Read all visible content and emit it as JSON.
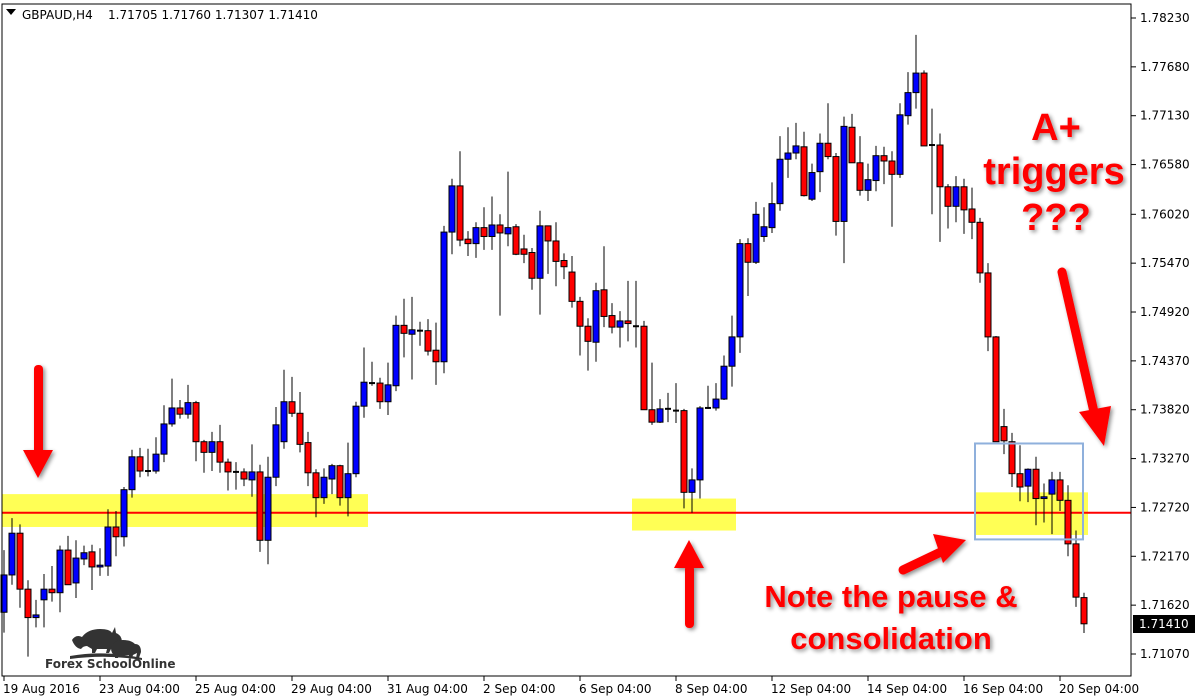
{
  "header": {
    "symbol": "GBPAUD,H4",
    "ohlc": "1.71705 1.71760 1.71307 1.71410",
    "dropdown_icon": "triangle-down-icon"
  },
  "colors": {
    "bull": "#0000ff",
    "bear": "#ff0000",
    "wick": "#000000",
    "zone": "#ffff55",
    "support_line": "#ff0000",
    "box": "#8fb0dc",
    "annotation": "#ff0000"
  },
  "annotations": {
    "a_plus": "A+",
    "triggers": "triggers",
    "question": "???",
    "note_line1": "Note the pause &",
    "note_line2": "consolidation"
  },
  "logo": {
    "text": "Forex SchoolOnline"
  },
  "chart_data": {
    "type": "candlestick",
    "title": "GBPAUD,H4",
    "ylim": [
      1.7082,
      1.7838
    ],
    "y_ticks": [
      "1.78230",
      "1.77680",
      "1.77130",
      "1.76580",
      "1.76020",
      "1.75470",
      "1.74920",
      "1.74370",
      "1.73820",
      "1.73270",
      "1.72720",
      "1.72170",
      "1.71620",
      "1.71070"
    ],
    "current_price": "1.71410",
    "support_level": 1.7266,
    "zones": [
      {
        "from_candle": 0,
        "to_candle": 45,
        "low": 1.725,
        "high": 1.7287
      },
      {
        "from_candle": 79,
        "to_candle": 91,
        "low": 1.7246,
        "high": 1.7282
      },
      {
        "from_candle": 122,
        "to_candle": 135,
        "low": 1.7241,
        "high": 1.7289
      }
    ],
    "consolidation_box": {
      "from_candle": 122,
      "to_candle": 134,
      "low": 1.7236,
      "high": 1.7344
    },
    "x_ticks": [
      {
        "label": "19 Aug 2016",
        "candle": 0
      },
      {
        "label": "23 Aug 04:00",
        "candle": 12
      },
      {
        "label": "25 Aug 04:00",
        "candle": 24
      },
      {
        "label": "29 Aug 04:00",
        "candle": 36
      },
      {
        "label": "31 Aug 04:00",
        "candle": 48
      },
      {
        "label": "2 Sep 04:00",
        "candle": 60
      },
      {
        "label": "6 Sep 04:00",
        "candle": 72
      },
      {
        "label": "8 Sep 04:00",
        "candle": 84
      },
      {
        "label": "12 Sep 04:00",
        "candle": 96
      },
      {
        "label": "14 Sep 04:00",
        "candle": 108
      },
      {
        "label": "16 Sep 04:00",
        "candle": 120
      },
      {
        "label": "20 Sep 04:00",
        "candle": 132
      }
    ],
    "candles_ohlc": [
      [
        1.7154,
        1.7224,
        1.7131,
        1.7196
      ],
      [
        1.7196,
        1.726,
        1.7185,
        1.7243
      ],
      [
        1.7243,
        1.7253,
        1.7159,
        1.718
      ],
      [
        1.718,
        1.719,
        1.7104,
        1.7148
      ],
      [
        1.7148,
        1.7168,
        1.7137,
        1.7151
      ],
      [
        1.7168,
        1.7197,
        1.7137,
        1.718
      ],
      [
        1.718,
        1.7206,
        1.7166,
        1.7176
      ],
      [
        1.7176,
        1.7229,
        1.7154,
        1.7224
      ],
      [
        1.7224,
        1.724,
        1.7185,
        1.7185
      ],
      [
        1.7187,
        1.7235,
        1.717,
        1.7215
      ],
      [
        1.7214,
        1.7229,
        1.7207,
        1.7221
      ],
      [
        1.7222,
        1.723,
        1.7179,
        1.7205
      ],
      [
        1.7205,
        1.7226,
        1.7195,
        1.7207
      ],
      [
        1.7206,
        1.727,
        1.7195,
        1.725
      ],
      [
        1.725,
        1.7268,
        1.7217,
        1.7239
      ],
      [
        1.7239,
        1.7295,
        1.7228,
        1.7292
      ],
      [
        1.7292,
        1.7337,
        1.7283,
        1.7329
      ],
      [
        1.7329,
        1.7339,
        1.7306,
        1.7313
      ],
      [
        1.7313,
        1.7338,
        1.7307,
        1.7313
      ],
      [
        1.7313,
        1.7351,
        1.731,
        1.7332
      ],
      [
        1.7332,
        1.7387,
        1.7323,
        1.7366
      ],
      [
        1.7366,
        1.7417,
        1.7363,
        1.7384
      ],
      [
        1.7384,
        1.7393,
        1.7372,
        1.7377
      ],
      [
        1.7377,
        1.741,
        1.7372,
        1.739
      ],
      [
        1.739,
        1.7392,
        1.7324,
        1.7346
      ],
      [
        1.7346,
        1.7348,
        1.7311,
        1.7334
      ],
      [
        1.7334,
        1.7357,
        1.7313,
        1.7346
      ],
      [
        1.7346,
        1.7365,
        1.7311,
        1.7323
      ],
      [
        1.7323,
        1.7327,
        1.7291,
        1.7312
      ],
      [
        1.7312,
        1.7323,
        1.7292,
        1.7312
      ],
      [
        1.7312,
        1.7316,
        1.7296,
        1.7304
      ],
      [
        1.7303,
        1.7343,
        1.7284,
        1.7312
      ],
      [
        1.7312,
        1.732,
        1.7222,
        1.7235
      ],
      [
        1.7235,
        1.7329,
        1.7208,
        1.7306
      ],
      [
        1.7306,
        1.7385,
        1.7296,
        1.7365
      ],
      [
        1.7346,
        1.7427,
        1.7338,
        1.7391
      ],
      [
        1.7391,
        1.7419,
        1.7374,
        1.7378
      ],
      [
        1.7378,
        1.7402,
        1.7334,
        1.7343
      ],
      [
        1.7345,
        1.7357,
        1.7296,
        1.7311
      ],
      [
        1.7311,
        1.7315,
        1.7261,
        1.7283
      ],
      [
        1.7283,
        1.7316,
        1.7276,
        1.7306
      ],
      [
        1.7304,
        1.7321,
        1.7287,
        1.7319
      ],
      [
        1.7319,
        1.732,
        1.7274,
        1.7283
      ],
      [
        1.7283,
        1.7345,
        1.7262,
        1.731
      ],
      [
        1.731,
        1.7391,
        1.7306,
        1.7386
      ],
      [
        1.7386,
        1.7452,
        1.7373,
        1.7413
      ],
      [
        1.7412,
        1.7436,
        1.7409,
        1.7412
      ],
      [
        1.7412,
        1.7418,
        1.7383,
        1.7391
      ],
      [
        1.7391,
        1.7435,
        1.7376,
        1.741
      ],
      [
        1.7409,
        1.7488,
        1.7403,
        1.7477
      ],
      [
        1.7477,
        1.7507,
        1.7441,
        1.7468
      ],
      [
        1.7467,
        1.7509,
        1.7416,
        1.7472
      ],
      [
        1.7471,
        1.7481,
        1.7454,
        1.7471
      ],
      [
        1.7471,
        1.7484,
        1.7443,
        1.7448
      ],
      [
        1.7449,
        1.748,
        1.741,
        1.7436
      ],
      [
        1.7436,
        1.7589,
        1.7423,
        1.7582
      ],
      [
        1.7582,
        1.7642,
        1.7557,
        1.7634
      ],
      [
        1.7634,
        1.7673,
        1.7566,
        1.7573
      ],
      [
        1.7574,
        1.7583,
        1.7555,
        1.7569
      ],
      [
        1.7569,
        1.7593,
        1.7553,
        1.7587
      ],
      [
        1.7587,
        1.761,
        1.7562,
        1.7577
      ],
      [
        1.7577,
        1.7622,
        1.7562,
        1.759
      ],
      [
        1.759,
        1.7602,
        1.7488,
        1.7581
      ],
      [
        1.758,
        1.765,
        1.7566,
        1.7587
      ],
      [
        1.7588,
        1.7591,
        1.7556,
        1.7557
      ],
      [
        1.7563,
        1.7579,
        1.7547,
        1.7557
      ],
      [
        1.7559,
        1.7564,
        1.7517,
        1.753
      ],
      [
        1.753,
        1.7606,
        1.7489,
        1.7589
      ],
      [
        1.7589,
        1.7589,
        1.7535,
        1.7572
      ],
      [
        1.7572,
        1.7593,
        1.7521,
        1.7549
      ],
      [
        1.755,
        1.7558,
        1.7529,
        1.7543
      ],
      [
        1.7537,
        1.7555,
        1.7497,
        1.7504
      ],
      [
        1.7504,
        1.7509,
        1.7443,
        1.7476
      ],
      [
        1.7476,
        1.7485,
        1.7426,
        1.7459
      ],
      [
        1.7458,
        1.7525,
        1.7436,
        1.7516
      ],
      [
        1.7517,
        1.7566,
        1.7475,
        1.7487
      ],
      [
        1.7488,
        1.7502,
        1.7468,
        1.7475
      ],
      [
        1.7475,
        1.7493,
        1.7452,
        1.7482
      ],
      [
        1.7482,
        1.7527,
        1.7459,
        1.7479
      ],
      [
        1.7476,
        1.7527,
        1.7452,
        1.7476
      ],
      [
        1.7476,
        1.7482,
        1.7382,
        1.7382
      ],
      [
        1.7382,
        1.7435,
        1.7365,
        1.7368
      ],
      [
        1.7368,
        1.7394,
        1.7367,
        1.7383
      ],
      [
        1.7383,
        1.7401,
        1.7368,
        1.7383
      ],
      [
        1.7381,
        1.7412,
        1.7367,
        1.7381
      ],
      [
        1.7381,
        1.7383,
        1.7271,
        1.7289
      ],
      [
        1.7289,
        1.7316,
        1.7266,
        1.7303
      ],
      [
        1.7303,
        1.7386,
        1.7282,
        1.7384
      ],
      [
        1.7384,
        1.7409,
        1.7383,
        1.7384
      ],
      [
        1.7384,
        1.7412,
        1.7381,
        1.7394
      ],
      [
        1.7394,
        1.7443,
        1.7393,
        1.7431
      ],
      [
        1.7431,
        1.7488,
        1.7408,
        1.7464
      ],
      [
        1.7464,
        1.7574,
        1.7446,
        1.7569
      ],
      [
        1.7569,
        1.7575,
        1.751,
        1.7548
      ],
      [
        1.7548,
        1.7616,
        1.7546,
        1.7602
      ],
      [
        1.7577,
        1.761,
        1.7571,
        1.7588
      ],
      [
        1.7587,
        1.7638,
        1.7581,
        1.7614
      ],
      [
        1.7614,
        1.769,
        1.7606,
        1.7664
      ],
      [
        1.7664,
        1.77,
        1.7643,
        1.7671
      ],
      [
        1.7671,
        1.7705,
        1.7664,
        1.7679
      ],
      [
        1.7678,
        1.7695,
        1.7622,
        1.7623
      ],
      [
        1.7619,
        1.7659,
        1.7617,
        1.7649
      ],
      [
        1.765,
        1.7693,
        1.7627,
        1.7682
      ],
      [
        1.7682,
        1.7727,
        1.7664,
        1.7667
      ],
      [
        1.7667,
        1.7671,
        1.7578,
        1.7594
      ],
      [
        1.7594,
        1.7712,
        1.7547,
        1.7701
      ],
      [
        1.77,
        1.7715,
        1.766,
        1.766
      ],
      [
        1.766,
        1.769,
        1.7623,
        1.7629
      ],
      [
        1.7629,
        1.7659,
        1.7617,
        1.7641
      ],
      [
        1.764,
        1.7679,
        1.7628,
        1.7668
      ],
      [
        1.7668,
        1.7678,
        1.7636,
        1.7662
      ],
      [
        1.7662,
        1.7673,
        1.7588,
        1.7647
      ],
      [
        1.7647,
        1.7727,
        1.7643,
        1.7714
      ],
      [
        1.7713,
        1.7762,
        1.7703,
        1.7739
      ],
      [
        1.7739,
        1.7804,
        1.7721,
        1.7761
      ],
      [
        1.7761,
        1.7764,
        1.7679,
        1.7679
      ],
      [
        1.768,
        1.7721,
        1.7602,
        1.768
      ],
      [
        1.768,
        1.7693,
        1.7571,
        1.7633
      ],
      [
        1.7633,
        1.7636,
        1.7586,
        1.7611
      ],
      [
        1.7611,
        1.7645,
        1.7593,
        1.7633
      ],
      [
        1.7633,
        1.7642,
        1.758,
        1.7607
      ],
      [
        1.7608,
        1.7632,
        1.7574,
        1.7593
      ],
      [
        1.7593,
        1.7598,
        1.7525,
        1.7536
      ],
      [
        1.7536,
        1.7547,
        1.7448,
        1.7464
      ],
      [
        1.7464,
        1.7465,
        1.7346,
        1.7346
      ],
      [
        1.7363,
        1.7383,
        1.7332,
        1.7347
      ],
      [
        1.7346,
        1.7356,
        1.7295,
        1.731
      ],
      [
        1.731,
        1.7342,
        1.7279,
        1.7295
      ],
      [
        1.7296,
        1.7316,
        1.7278,
        1.7315
      ],
      [
        1.7315,
        1.7329,
        1.7252,
        1.7282
      ],
      [
        1.7282,
        1.7299,
        1.7255,
        1.7284
      ],
      [
        1.7287,
        1.7312,
        1.7242,
        1.7303
      ],
      [
        1.7303,
        1.7312,
        1.7268,
        1.728
      ],
      [
        1.728,
        1.7297,
        1.7217,
        1.7231
      ],
      [
        1.7231,
        1.7246,
        1.716,
        1.7171
      ],
      [
        1.71705,
        1.7176,
        1.71307,
        1.7141
      ]
    ]
  }
}
